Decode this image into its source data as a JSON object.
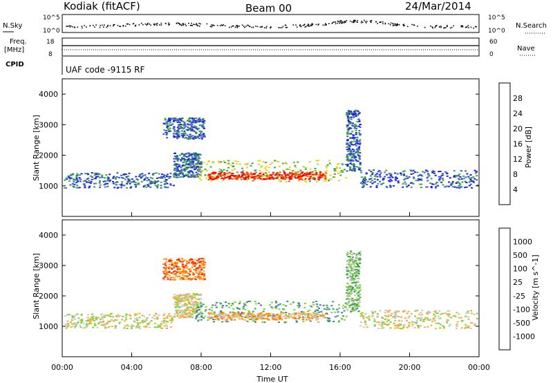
{
  "header": {
    "station": "Kodiak (fitACF)",
    "beam": "Beam 00",
    "date": "24/Mar/2014"
  },
  "panel_labels": {
    "nsky": "N.Sky",
    "nsearch": "N.Search",
    "freq_line1": "Freq.",
    "freq_line2": "[MHz]",
    "nave": "Nave",
    "cpid": "CPID",
    "cpid_text": "UAF code -9115 RF"
  },
  "noise_axis": {
    "left_top": "10^5",
    "left_bottom": "10^0",
    "right_top": "10^5",
    "right_bottom": "10^0"
  },
  "freq_axis": {
    "left_top": "18",
    "left_bottom": "8",
    "right_top": "60",
    "right_bottom": "0"
  },
  "chart_data": [
    {
      "type": "heatmap",
      "title": "",
      "xlabel": "Time UT",
      "ylabel": "Slant Range [km]",
      "x_ticks": [
        "00:00",
        "04:00",
        "08:00",
        "12:00",
        "16:00",
        "20:00",
        "00:00"
      ],
      "y_ticks": [
        1000,
        2000,
        3000,
        4000
      ],
      "ylim": [
        0,
        4500
      ],
      "colorbar_label": "Power [dB]",
      "colorbar_ticks": [
        "28",
        "24",
        "20",
        "16",
        "12",
        "8",
        "4"
      ],
      "colors": [
        "#ff0000",
        "#ff5a00",
        "#ff9a00",
        "#ffd200",
        "#bcd24a",
        "#3fa34a",
        "#3b5fbf",
        "#1e1ef0"
      ]
    },
    {
      "type": "heatmap",
      "title": "",
      "xlabel": "Time UT",
      "ylabel": "Slant Range [km]",
      "x_ticks": [
        "00:00",
        "04:00",
        "08:00",
        "12:00",
        "16:00",
        "20:00",
        "00:00"
      ],
      "y_ticks": [
        1000,
        2000,
        3000,
        4000
      ],
      "ylim": [
        0,
        4500
      ],
      "colorbar_label": "Velocity [m s^-1]",
      "colorbar_ticks": [
        "1000",
        "500",
        "100",
        "25",
        "-25",
        "-100",
        "-500",
        "-1000"
      ],
      "colors": [
        "#2c3fbf",
        "#3a7fb4",
        "#3fa34a",
        "#7ed23a",
        "#c8c8c8",
        "#ffaa33",
        "#ff7a00",
        "#ff2a00",
        "#ff0000"
      ]
    }
  ]
}
